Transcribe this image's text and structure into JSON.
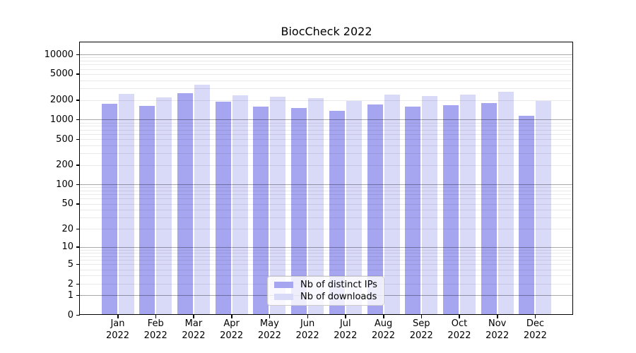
{
  "chart_data": {
    "type": "bar",
    "title": "BiocCheck 2022",
    "categories": [
      "Jan 2022",
      "Feb 2022",
      "Mar 2022",
      "Apr 2022",
      "May 2022",
      "Jun 2022",
      "Jul 2022",
      "Aug 2022",
      "Sep 2022",
      "Oct 2022",
      "Nov 2022",
      "Dec 2022"
    ],
    "series": [
      {
        "name": "Nb of distinct IPs",
        "color": "#a5a5f0",
        "values": [
          1760,
          1640,
          2520,
          1890,
          1580,
          1490,
          1370,
          1720,
          1580,
          1650,
          1800,
          1150
        ]
      },
      {
        "name": "Nb of downloads",
        "color": "#d9d9f8",
        "values": [
          2460,
          2210,
          3440,
          2380,
          2270,
          2120,
          1920,
          2420,
          2310,
          2420,
          2700,
          1950
        ]
      }
    ],
    "yscale": "log10(1+x)",
    "ylim": [
      0,
      15400
    ],
    "y_tick_values": [
      10000,
      5000,
      2000,
      1000,
      500,
      200,
      100,
      50,
      20,
      10,
      5,
      2,
      1,
      0
    ],
    "grid": "major-and-minor, drawn over bars",
    "legend_position": "lower center"
  },
  "axes": {
    "y_tick_labels": [
      "10000",
      "5000",
      "2000",
      "1000",
      "500",
      "200",
      "100",
      "50",
      "20",
      "10",
      "5",
      "2",
      "1",
      "0"
    ],
    "x_tick_labels_line1": [
      "Jan",
      "Feb",
      "Mar",
      "Apr",
      "May",
      "Jun",
      "Jul",
      "Aug",
      "Sep",
      "Oct",
      "Nov",
      "Dec"
    ],
    "x_tick_labels_line2": "2022"
  },
  "colors": {
    "bar_distinct_ips": "#a5a5f0",
    "bar_downloads": "#d9d9f8",
    "grid_major": "#a9a9a9",
    "grid_minor": "#e9e9e9",
    "axis_spine": "#000000",
    "background": "#ffffff"
  }
}
